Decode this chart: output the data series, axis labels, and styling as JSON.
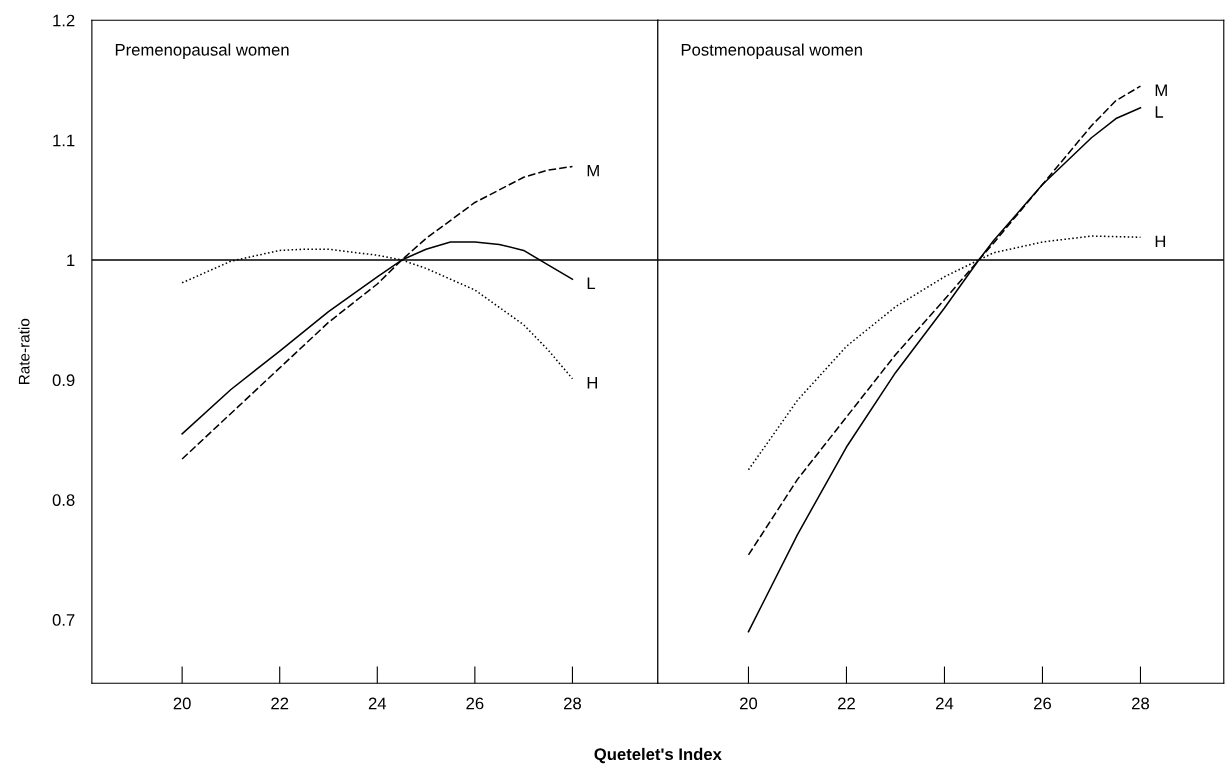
{
  "chart_data": [
    {
      "type": "line",
      "title": "Premenopausal women",
      "xlabel": "Quetelet's Index",
      "ylabel": "Rate-ratio",
      "xlim": [
        18.15,
        29.75
      ],
      "ylim": [
        0.647,
        1.2
      ],
      "xticks": [
        20,
        22,
        24,
        26,
        28
      ],
      "yticks": [
        0.7,
        0.8,
        0.9,
        1,
        1.1,
        1.2
      ],
      "grid": false,
      "legend": false,
      "marker": "none",
      "ref_lines": [
        {
          "axis": "y",
          "value": 1,
          "color": "#000000"
        }
      ],
      "series": [
        {
          "name": "L",
          "color": "#000000",
          "line_style": "solid",
          "x": [
            20,
            21,
            22,
            23,
            24,
            24.5,
            25,
            25.5,
            26,
            26.5,
            27,
            27.5,
            28
          ],
          "values": [
            0.855,
            0.892,
            0.924,
            0.957,
            0.986,
            1.0,
            1.009,
            1.015,
            1.015,
            1.013,
            1.008,
            0.996,
            0.984
          ]
        },
        {
          "name": "M",
          "color": "#000000",
          "line_style": "dashed",
          "x": [
            20,
            21,
            22,
            23,
            24,
            24.5,
            25,
            26,
            27,
            27.5,
            28
          ],
          "values": [
            0.834,
            0.872,
            0.91,
            0.948,
            0.98,
            1.0,
            1.018,
            1.048,
            1.069,
            1.075,
            1.078
          ]
        },
        {
          "name": "H",
          "color": "#000000",
          "line_style": "dotted",
          "x": [
            20,
            21,
            22,
            22.5,
            23,
            24,
            24.5,
            25,
            26,
            27,
            27.5,
            28
          ],
          "values": [
            0.981,
            0.999,
            1.008,
            1.009,
            1.009,
            1.004,
            1.0,
            0.993,
            0.975,
            0.946,
            0.925,
            0.901
          ]
        }
      ]
    },
    {
      "type": "line",
      "title": "Postmenopausal women",
      "xlim": [
        18.15,
        29.7
      ],
      "ylim": [
        0.647,
        1.2
      ],
      "xticks": [
        20,
        22,
        24,
        26,
        28
      ],
      "tick_labels": "x",
      "grid": false,
      "legend": false,
      "marker": "none",
      "ref_lines": [
        {
          "axis": "y",
          "value": 1,
          "color": "#000000"
        }
      ],
      "series": [
        {
          "name": "L",
          "color": "#000000",
          "line_style": "solid",
          "x": [
            20,
            21,
            22,
            23,
            24,
            24.7,
            25,
            26,
            27,
            27.5,
            28
          ],
          "values": [
            0.69,
            0.771,
            0.844,
            0.906,
            0.96,
            1.0,
            1.016,
            1.063,
            1.102,
            1.118,
            1.127
          ]
        },
        {
          "name": "M",
          "color": "#000000",
          "line_style": "dashed",
          "x": [
            20,
            21,
            22,
            23,
            24,
            24.7,
            25,
            26,
            27,
            27.5,
            28
          ],
          "values": [
            0.754,
            0.817,
            0.869,
            0.921,
            0.967,
            1.0,
            1.014,
            1.063,
            1.112,
            1.133,
            1.145
          ]
        },
        {
          "name": "H",
          "color": "#000000",
          "line_style": "dotted",
          "x": [
            20,
            21,
            22,
            23,
            24,
            24.7,
            25,
            26,
            27,
            28
          ],
          "values": [
            0.825,
            0.883,
            0.928,
            0.961,
            0.986,
            1.0,
            1.006,
            1.015,
            1.02,
            1.019
          ]
        }
      ]
    }
  ]
}
